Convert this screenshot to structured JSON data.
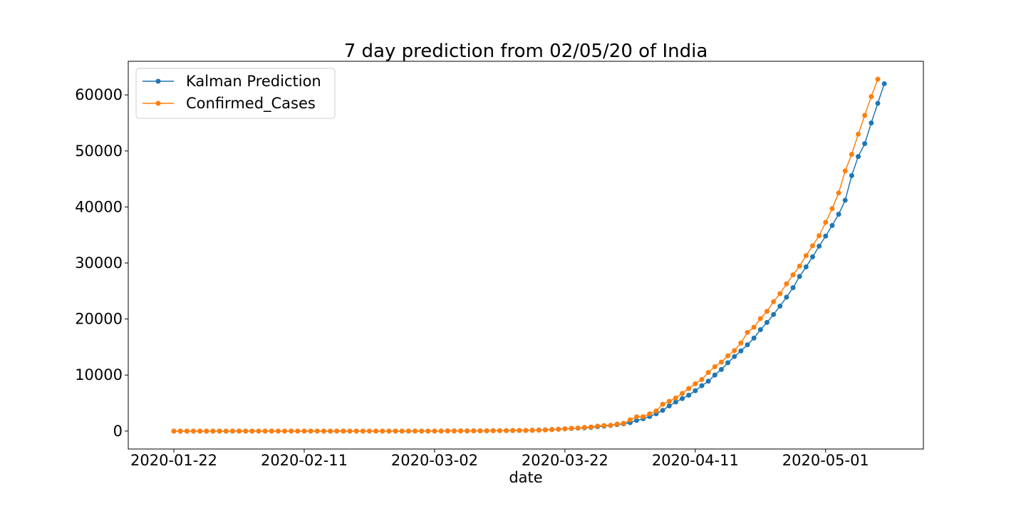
{
  "chart_data": {
    "type": "line",
    "title": "7 day prediction from 02/05/20 of India",
    "xlabel": "date",
    "ylabel": "",
    "x_start": "2020-01-22",
    "x_end": "2020-05-09",
    "xlim": [
      "2020-01-15",
      "2020-05-16"
    ],
    "ylim": [
      -3200,
      66000
    ],
    "x_ticks": [
      "2020-01-22",
      "2020-02-11",
      "2020-03-02",
      "2020-03-22",
      "2020-04-11",
      "2020-05-01"
    ],
    "y_ticks": [
      0,
      10000,
      20000,
      30000,
      40000,
      50000,
      60000
    ],
    "grid": false,
    "legend_position": "upper-left",
    "series": [
      {
        "name": "Kalman Prediction",
        "color": "#1f77b4",
        "values": [
          1,
          1,
          1,
          1,
          1,
          1,
          1,
          1,
          1,
          2,
          2,
          2,
          3,
          3,
          3,
          3,
          3,
          3,
          3,
          3,
          3,
          3,
          3,
          3,
          3,
          3,
          3,
          3,
          3,
          3,
          3,
          3,
          3,
          3,
          3,
          3,
          3,
          3,
          3,
          3,
          3,
          5,
          28,
          30,
          31,
          34,
          39,
          43,
          50,
          73,
          75,
          83,
          90,
          105,
          114,
          140,
          180,
          215,
          275,
          330,
          400,
          470,
          520,
          580,
          650,
          780,
          890,
          990,
          1150,
          1300,
          1500,
          1900,
          2200,
          2600,
          3100,
          3700,
          4500,
          5200,
          5800,
          6400,
          7200,
          8100,
          8900,
          10000,
          11000,
          12200,
          13300,
          14300,
          15400,
          16600,
          18100,
          19400,
          20800,
          22300,
          23900,
          25600,
          27600,
          29300,
          31100,
          33000,
          34800,
          36700,
          38700,
          41200,
          45600,
          49000,
          51300,
          55000,
          58500,
          62000
        ]
      },
      {
        "name": "Confirmed_Cases",
        "color": "#ff7f0e",
        "values": [
          0,
          0,
          0,
          0,
          0,
          0,
          0,
          0,
          0,
          1,
          1,
          1,
          2,
          3,
          3,
          3,
          3,
          3,
          3,
          3,
          3,
          3,
          3,
          3,
          3,
          3,
          3,
          3,
          3,
          3,
          3,
          3,
          3,
          3,
          3,
          3,
          3,
          3,
          3,
          3,
          5,
          6,
          28,
          30,
          31,
          34,
          39,
          43,
          56,
          62,
          73,
          82,
          102,
          113,
          119,
          142,
          156,
          194,
          244,
          330,
          396,
          499,
          536,
          657,
          727,
          887,
          987,
          1024,
          1251,
          1397,
          1998,
          2543,
          2567,
          3082,
          3588,
          4778,
          5311,
          5916,
          6725,
          7598,
          8446,
          9205,
          10453,
          11487,
          12322,
          13430,
          14352,
          15722,
          17615,
          18539,
          20080,
          21370,
          23077,
          24530,
          26283,
          27890,
          29451,
          31324,
          33062,
          34863,
          37257,
          39699,
          42505,
          46437,
          49400,
          52987,
          56351,
          59695,
          62808
        ]
      }
    ]
  }
}
